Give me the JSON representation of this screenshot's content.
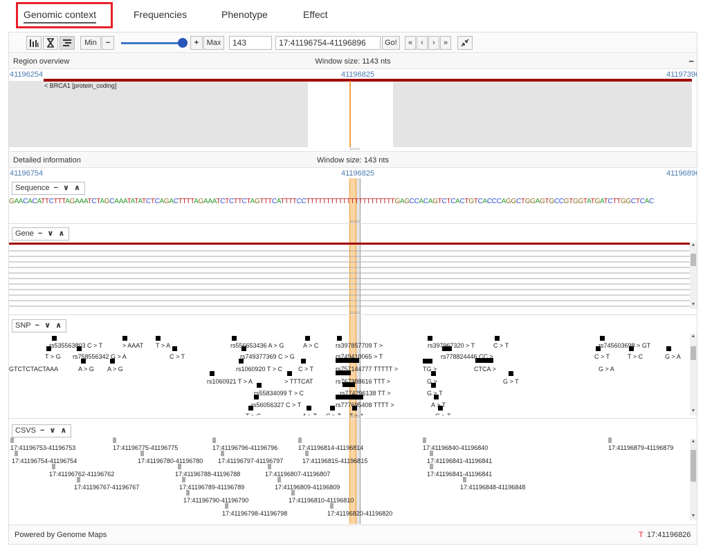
{
  "tabs": {
    "genomic_context": "Genomic context",
    "frequencies": "Frequencies",
    "phenotype": "Phenotype",
    "effect": "Effect"
  },
  "toolbar": {
    "min_label": "Min",
    "minus": "−",
    "plus": "+",
    "max_label": "Max",
    "window_value": "143",
    "region_value": "17:41196754-41196896",
    "go_label": "Go!"
  },
  "overview": {
    "title": "Region overview",
    "window_size": "Window size: 1143 nts",
    "collapse": "−",
    "coord_left": "41196254",
    "coord_center": "41196825",
    "coord_right": "41197396",
    "gene_label": "< BRCA1 [protein_coding]"
  },
  "detail": {
    "title": "Detailed information",
    "window_size": "Window size: 143 nts",
    "coord_left": "41196754",
    "coord_center": "41196825",
    "coord_right": "41196896"
  },
  "tracks": {
    "sequence": "Sequence",
    "gene": "Gene",
    "snp": "SNP",
    "csvs": "CSVS",
    "controls": "− ∨ ∧"
  },
  "sequence": "GAACACATTCTTTAGAAATCTAGCAAATATATCTCAGACTTTTAGAAATCTCTTCTAGTTTCATTTTCCTTTTTTTTTTTTTTTTTTTTTTGAGCCACAGTCTCACTGTCACCCAGGCTGGAGTGCCGTGGTATGATCTTGGCTCAC",
  "snp_labels": [
    {
      "t": "rs535563803 C > T"
    },
    {
      "t": "> AAAT"
    },
    {
      "t": "T > A"
    },
    {
      "t": "rs556653436 A > G"
    },
    {
      "t": "A > C"
    },
    {
      "t": "rs397857709 T >"
    },
    {
      "t": "rs397967320 > T"
    },
    {
      "t": "C > T"
    },
    {
      "t": "rs745603698 > GT"
    },
    {
      "t": "T > G"
    },
    {
      "t": "rs758556342 G > A"
    },
    {
      "t": "C > T"
    },
    {
      "t": "rs749377369 C > G"
    },
    {
      "t": "rs749410065 > T"
    },
    {
      "t": "rs778824446 CC >"
    },
    {
      "t": "C > T"
    },
    {
      "t": "T > C"
    },
    {
      "t": "G > A"
    },
    {
      "t": "GTCTCTACTAAA"
    },
    {
      "t": "A > G"
    },
    {
      "t": "A > G"
    },
    {
      "t": "rs1060920 T > C"
    },
    {
      "t": "C > T"
    },
    {
      "t": "rs757144777 TTTTT >"
    },
    {
      "t": "TG >"
    },
    {
      "t": "CTCA >"
    },
    {
      "t": "G > A"
    },
    {
      "t": "rs1060921 T > A"
    },
    {
      "t": "> TTTCAT"
    },
    {
      "t": "rs767388616 TTT >"
    },
    {
      "t": "G >"
    },
    {
      "t": "G > T"
    },
    {
      "t": "rs55834099 T > C"
    },
    {
      "t": "rs774296138 TT >"
    },
    {
      "t": "G > T"
    },
    {
      "t": "rs56056327 C > T"
    },
    {
      "t": "rs777695408 TTTT >"
    },
    {
      "t": "A > T"
    },
    {
      "t": "T > C"
    },
    {
      "t": "A > T"
    },
    {
      "t": "C > T"
    },
    {
      "t": "T > A"
    },
    {
      "t": "G > T"
    }
  ],
  "csvs_labels": [
    "17:41196753-41196753",
    "17:41196775-41196775",
    "17:41196796-41196796",
    "17:41196814-41196814",
    "17:41196840-41196840",
    "17:41196879-41196879",
    "17:41196754-41196754",
    "17:41196780-41196780",
    "17:41196797-41196797",
    "17:41196815-41196815",
    "17:41196841-41196841",
    "17:41196762-41196762",
    "17:41196788-41196788",
    "17:41196807-41196807",
    "17:41196841-41196841",
    "17:41196767-41196767",
    "17:41196789-41196789",
    "17:41196809-41196809",
    "17:41196848-41196848",
    "17:41196790-41196790",
    "17:41196810-41196810",
    "17:41196798-41196798",
    "17:41196820-41196820"
  ],
  "footer": {
    "powered": "Powered by Genome Maps",
    "base": "T",
    "position": "17:41196826"
  },
  "colors": {
    "accent": "#e8202a",
    "gene": "#a00000",
    "coord": "#4a7ab0",
    "highlight": "#f7b35a"
  }
}
